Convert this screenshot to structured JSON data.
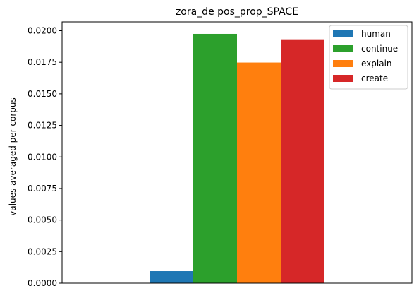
{
  "chart_data": {
    "type": "bar",
    "title": "zora_de pos_prop_SPACE",
    "xlabel": "",
    "ylabel": "values averaged per corpus",
    "categories": [
      ""
    ],
    "ylim": [
      0,
      0.0207
    ],
    "yticks": [
      "0.0000",
      "0.0025",
      "0.0050",
      "0.0075",
      "0.0100",
      "0.0125",
      "0.0150",
      "0.0175",
      "0.0200"
    ],
    "grid": false,
    "legend_position": "top-right",
    "series": [
      {
        "name": "human",
        "values": [
          0.00095
        ],
        "color": "#1f77b4"
      },
      {
        "name": "continue",
        "values": [
          0.01975
        ],
        "color": "#2ca02c"
      },
      {
        "name": "explain",
        "values": [
          0.01748
        ],
        "color": "#ff7f0e"
      },
      {
        "name": "create",
        "values": [
          0.01932
        ],
        "color": "#d62728"
      }
    ]
  }
}
